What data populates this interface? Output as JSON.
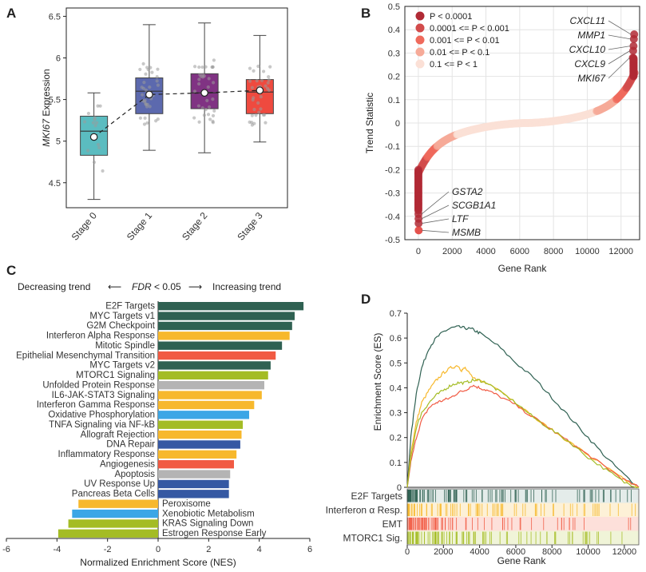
{
  "chart_data": [
    {
      "panel": "A",
      "type": "box",
      "ylabel_italic": "MKI67",
      "ylabel_rest": " Expression",
      "ylim": [
        4.2,
        6.6
      ],
      "yticks": [
        4.5,
        5,
        5.5,
        6,
        6.5
      ],
      "categories": [
        "Stage 0",
        "Stage 1",
        "Stage 2",
        "Stage 3"
      ],
      "colors": [
        "#5bbcc0",
        "#5c69ae",
        "#803383",
        "#ef4a3f"
      ],
      "boxes": [
        {
          "whisker_low": 4.3,
          "q1": 4.83,
          "median": 5.12,
          "q3": 5.3,
          "whisker_high": 5.58,
          "mean": 5.05
        },
        {
          "whisker_low": 4.89,
          "q1": 5.33,
          "median": 5.6,
          "q3": 5.76,
          "whisker_high": 6.4,
          "mean": 5.56
        },
        {
          "whisker_low": 4.86,
          "q1": 5.39,
          "median": 5.58,
          "q3": 5.81,
          "whisker_high": 6.42,
          "mean": 5.58
        },
        {
          "whisker_low": 4.99,
          "q1": 5.33,
          "median": 5.59,
          "q3": 5.74,
          "whisker_high": 6.27,
          "mean": 5.61
        }
      ]
    },
    {
      "panel": "B",
      "type": "scatter",
      "xlabel": "Gene Rank",
      "ylabel": "Trend Statistic",
      "xlim": [
        -800,
        13100
      ],
      "ylim": [
        -0.5,
        0.5
      ],
      "xticks": [
        0,
        2000,
        4000,
        6000,
        8000,
        10000,
        12000
      ],
      "yticks": [
        -0.5,
        -0.4,
        -0.3,
        -0.2,
        -0.1,
        0,
        0.1,
        0.2,
        0.3,
        0.4,
        0.5
      ],
      "n_genes": 12800,
      "legend": [
        {
          "label": "P < 0.0001",
          "color": "#b02a35"
        },
        {
          "label": "0.0001 <= P < 0.001",
          "color": "#d24b4b"
        },
        {
          "label": "0.001 <= P < 0.01",
          "color": "#ef6a5c"
        },
        {
          "label": "0.01 <= P < 0.1",
          "color": "#f6aa98"
        },
        {
          "label": "0.1 <= P < 1",
          "color": "#fbe0d6"
        }
      ],
      "top_genes": [
        {
          "gene": "CXCL11",
          "rank": 12780,
          "value": 0.38
        },
        {
          "gene": "MMP1",
          "rank": 12760,
          "value": 0.36
        },
        {
          "gene": "CXCL10",
          "rank": 12740,
          "value": 0.33
        },
        {
          "gene": "CXCL9",
          "rank": 12720,
          "value": 0.31
        },
        {
          "gene": "MKI67",
          "rank": 12700,
          "value": 0.28
        }
      ],
      "bottom_genes": [
        {
          "gene": "GSTA2",
          "rank": 5,
          "value": -0.39
        },
        {
          "gene": "SCGB1A1",
          "rank": 10,
          "value": -0.41
        },
        {
          "gene": "LTF",
          "rank": 15,
          "value": -0.43
        },
        {
          "gene": "MSMB",
          "rank": 20,
          "value": -0.46
        }
      ]
    },
    {
      "panel": "C",
      "type": "bar",
      "orientation": "horizontal",
      "xlabel": "Normalized Enrichment Score (NES)",
      "xlim": [
        -6,
        6
      ],
      "xticks": [
        -6,
        -4,
        -2,
        0,
        2,
        4,
        6
      ],
      "header_left": "Decreasing trend",
      "header_fdr": "FDR",
      "header_mid": " < 0.05",
      "header_right": "Increasing trend",
      "bars": [
        {
          "label": "E2F Targets",
          "nes": 5.75,
          "color": "#2f6152"
        },
        {
          "label": "MYC Targets v1",
          "nes": 5.4,
          "color": "#2f6152"
        },
        {
          "label": "G2M Checkpoint",
          "nes": 5.3,
          "color": "#2f6152"
        },
        {
          "label": "Interferon Alpha Response",
          "nes": 5.2,
          "color": "#f7b82c"
        },
        {
          "label": "Mitotic Spindle",
          "nes": 4.9,
          "color": "#2f6152"
        },
        {
          "label": "Epithelial Mesenchymal Transition",
          "nes": 4.65,
          "color": "#f15a43"
        },
        {
          "label": "MYC Targets v2",
          "nes": 4.45,
          "color": "#2f6152"
        },
        {
          "label": "MTORC1 Signaling",
          "nes": 4.35,
          "color": "#a4bc25"
        },
        {
          "label": "Unfolded Protein Response",
          "nes": 4.2,
          "color": "#b4b4b4"
        },
        {
          "label": "IL6-JAK-STAT3 Signaling",
          "nes": 4.1,
          "color": "#f7b82c"
        },
        {
          "label": "Interferon Gamma Response",
          "nes": 3.8,
          "color": "#f7b82c"
        },
        {
          "label": "Oxidative Phosphorylation",
          "nes": 3.6,
          "color": "#3ba6e6"
        },
        {
          "label": "TNFA Signaling via NF-kB",
          "nes": 3.35,
          "color": "#a4bc25"
        },
        {
          "label": "Allograft Rejection",
          "nes": 3.3,
          "color": "#f7b82c"
        },
        {
          "label": "DNA Repair",
          "nes": 3.25,
          "color": "#3558a3"
        },
        {
          "label": "Inflammatory Response",
          "nes": 3.1,
          "color": "#f7b82c"
        },
        {
          "label": "Angiogenesis",
          "nes": 3.0,
          "color": "#f15a43"
        },
        {
          "label": "Apoptosis",
          "nes": 2.85,
          "color": "#b4b4b4"
        },
        {
          "label": "UV Response Up",
          "nes": 2.8,
          "color": "#3558a3"
        },
        {
          "label": "Pancreas Beta Cells",
          "nes": 2.8,
          "color": "#3558a3"
        },
        {
          "label": "Peroxisome",
          "nes": -3.15,
          "color": "#f7b82c"
        },
        {
          "label": "Xenobiotic Metabolism",
          "nes": -3.4,
          "color": "#3ba6e6"
        },
        {
          "label": "KRAS Signaling Down",
          "nes": -3.55,
          "color": "#a4bc25"
        },
        {
          "label": "Estrogen Response Early",
          "nes": -3.95,
          "color": "#a4bc25"
        }
      ]
    },
    {
      "panel": "D",
      "type": "line",
      "xlabel": "Gene Rank",
      "ylabel": "Enrichment Score (ES)",
      "xlim": [
        0,
        12800
      ],
      "ylim": [
        0,
        0.7
      ],
      "xticks": [
        0,
        2000,
        4000,
        6000,
        8000,
        10000,
        12000
      ],
      "yticks": [
        0,
        0.1,
        0.2,
        0.3,
        0.4,
        0.5,
        0.6,
        0.7
      ],
      "series": [
        {
          "name": "E2F Targets",
          "color": "#2f6152",
          "x": [
            0,
            200,
            500,
            800,
            1200,
            1600,
            2000,
            2400,
            2800,
            3200,
            3600,
            4000,
            5000,
            6000,
            7000,
            8000,
            9000,
            10000,
            11000,
            12000,
            12800
          ],
          "y": [
            0,
            0.2,
            0.38,
            0.48,
            0.56,
            0.6,
            0.625,
            0.64,
            0.645,
            0.64,
            0.635,
            0.62,
            0.57,
            0.5,
            0.44,
            0.36,
            0.28,
            0.2,
            0.12,
            0.05,
            0
          ]
        },
        {
          "name": "Interferon α Resp.",
          "color": "#f7b82c",
          "x": [
            0,
            200,
            500,
            800,
            1200,
            1600,
            2000,
            2400,
            2800,
            3000,
            3200,
            3600,
            4000,
            5000,
            6000,
            7000,
            8000,
            9000,
            10000,
            11000,
            12000,
            12800
          ],
          "y": [
            0,
            0.14,
            0.26,
            0.34,
            0.39,
            0.43,
            0.46,
            0.48,
            0.49,
            0.47,
            0.48,
            0.44,
            0.43,
            0.4,
            0.34,
            0.28,
            0.23,
            0.18,
            0.13,
            0.08,
            0.03,
            0
          ]
        },
        {
          "name": "EMT",
          "color": "#f15a43",
          "x": [
            0,
            200,
            500,
            800,
            1200,
            1600,
            2000,
            2400,
            2800,
            3200,
            3600,
            4000,
            4400,
            5000,
            6000,
            7000,
            8000,
            9000,
            10000,
            11000,
            12000,
            12800
          ],
          "y": [
            0,
            0.1,
            0.2,
            0.27,
            0.32,
            0.34,
            0.35,
            0.36,
            0.38,
            0.39,
            0.41,
            0.4,
            0.39,
            0.37,
            0.33,
            0.28,
            0.23,
            0.18,
            0.13,
            0.08,
            0.03,
            0
          ]
        },
        {
          "name": "MTORC1 Sig.",
          "color": "#a4bc25",
          "x": [
            0,
            200,
            500,
            800,
            1200,
            1600,
            2000,
            2400,
            2800,
            3200,
            3600,
            4000,
            4400,
            5000,
            6000,
            7000,
            8000,
            9000,
            10000,
            11000,
            12000,
            12800
          ],
          "y": [
            0,
            0.12,
            0.24,
            0.3,
            0.34,
            0.37,
            0.39,
            0.41,
            0.42,
            0.42,
            0.43,
            0.43,
            0.42,
            0.39,
            0.34,
            0.28,
            0.23,
            0.18,
            0.12,
            0.07,
            0.02,
            0
          ]
        }
      ]
    }
  ]
}
